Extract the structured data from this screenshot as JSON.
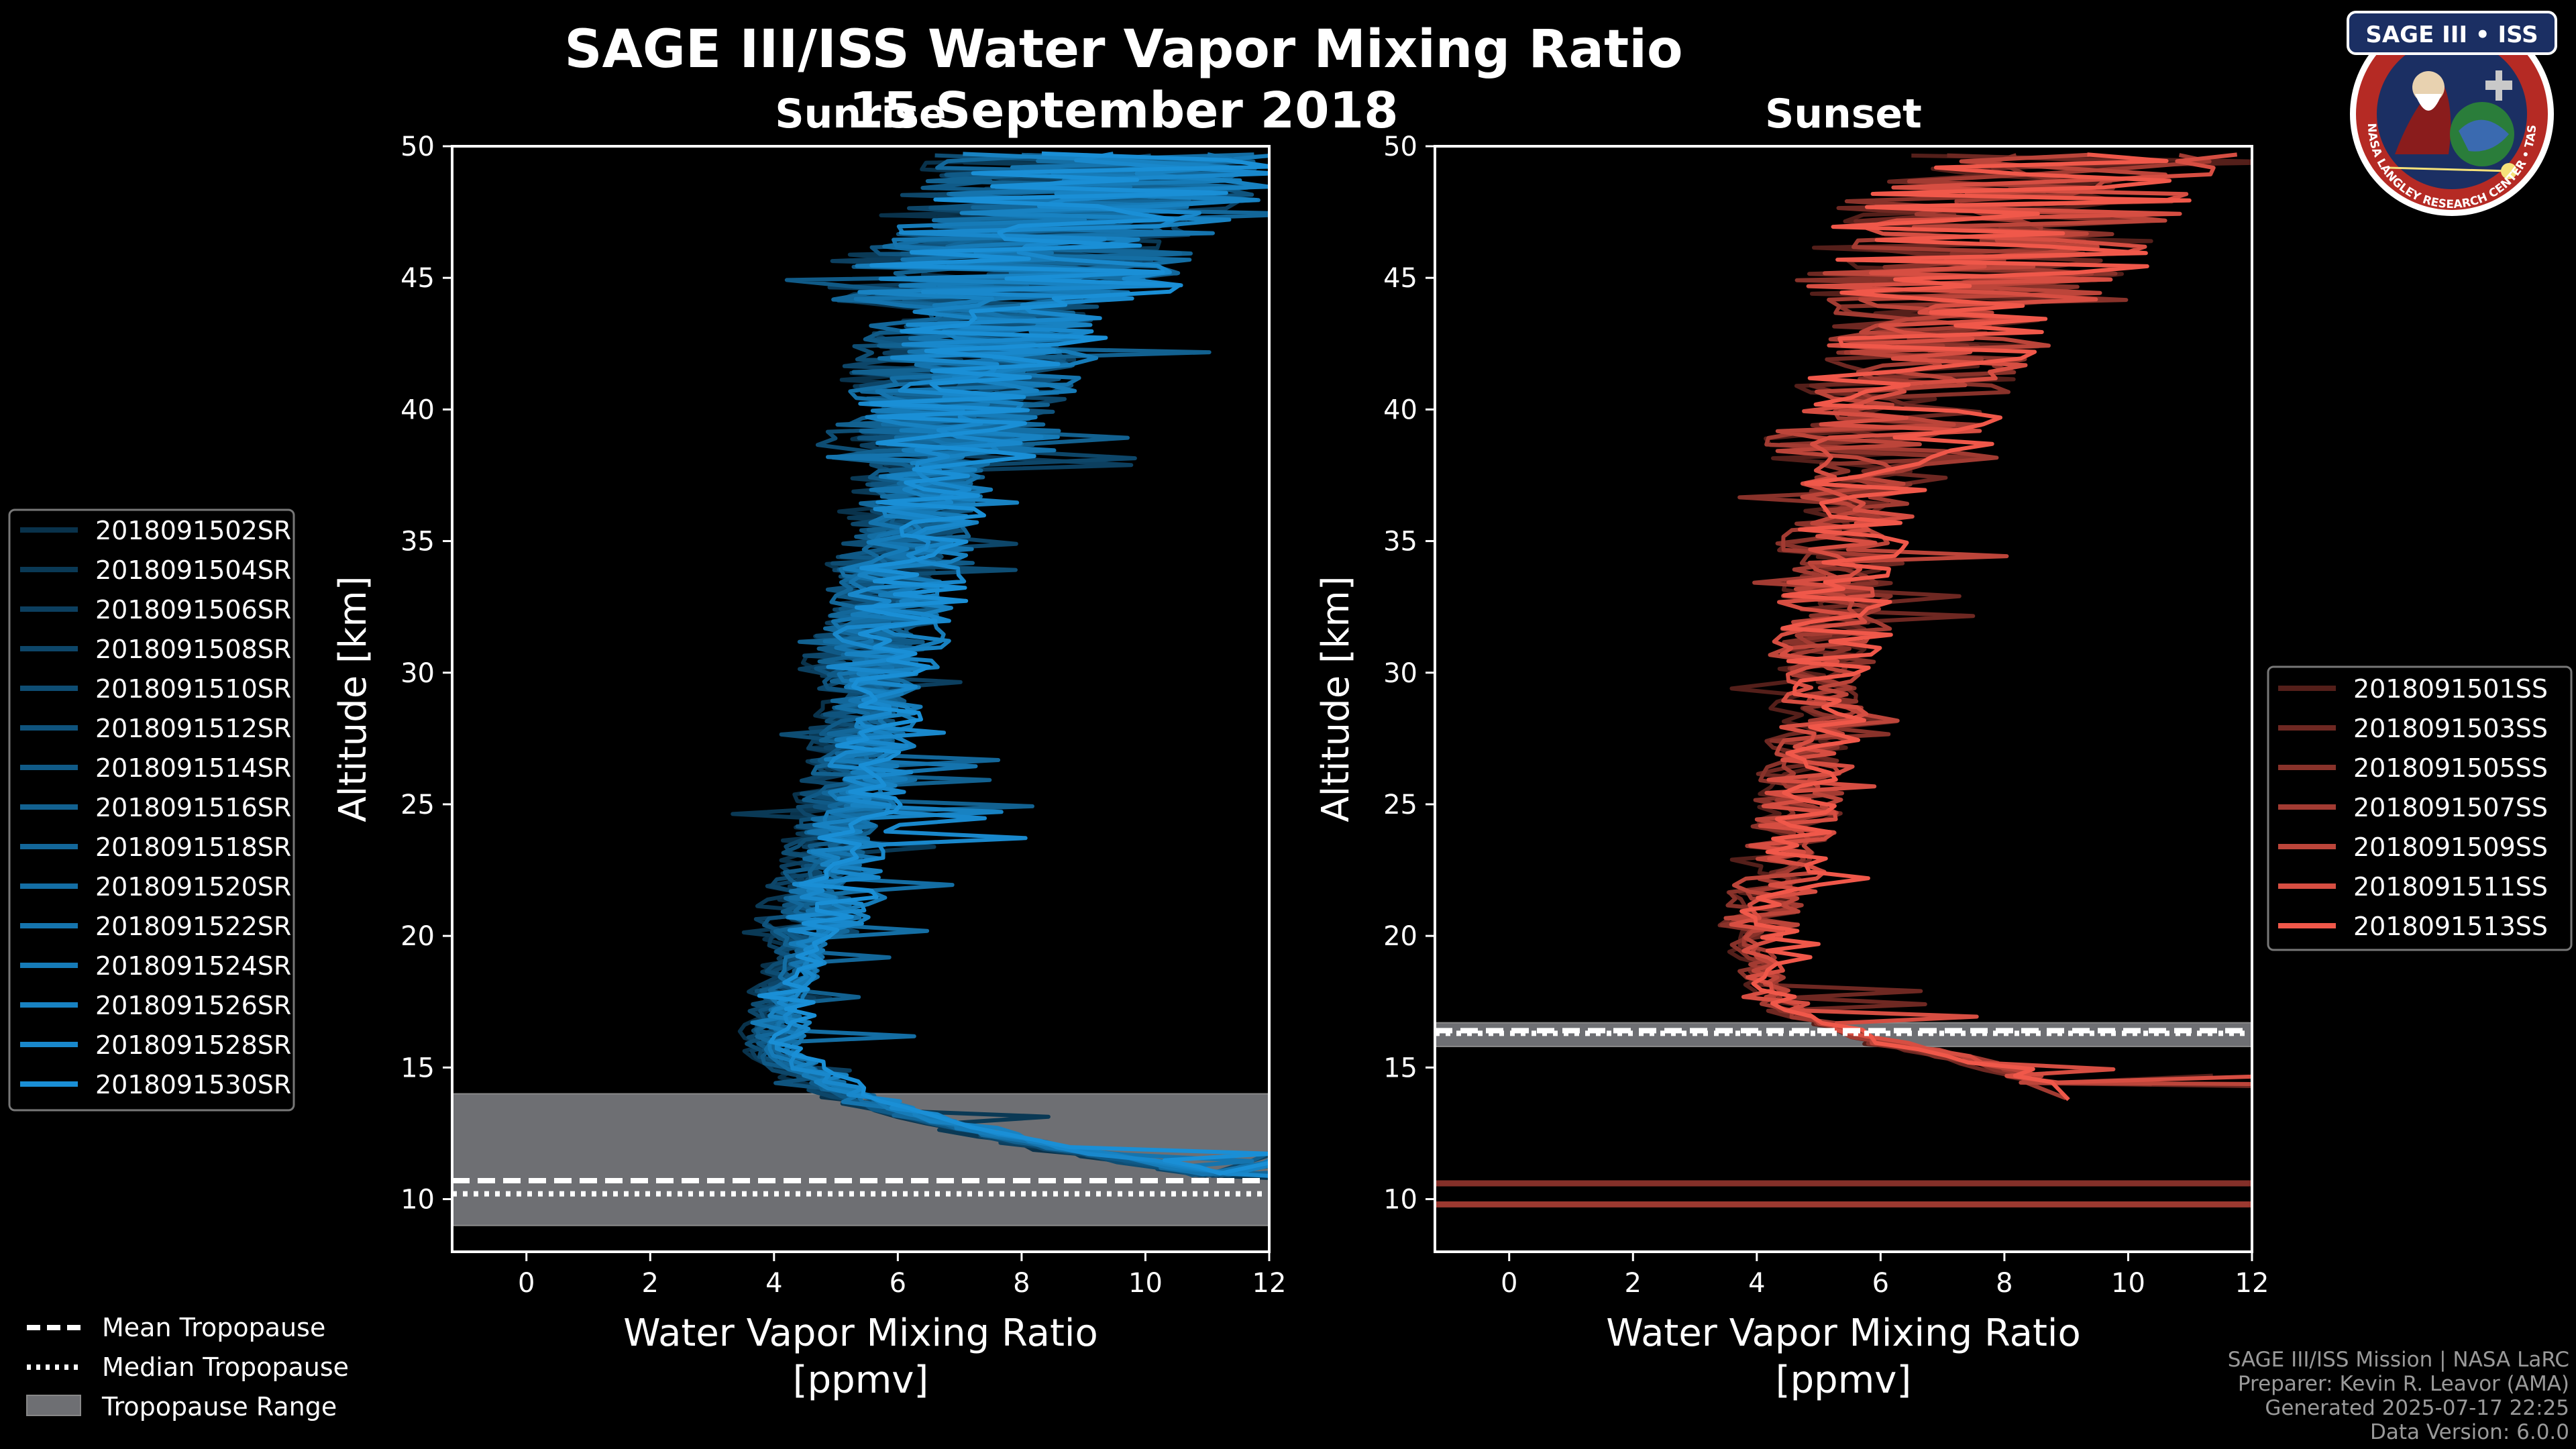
{
  "header": {
    "title": "SAGE III/ISS Water Vapor Mixing Ratio",
    "date": "15 September 2018",
    "left_label": "Sunrise",
    "right_label": "Sunset"
  },
  "logo": {
    "text_top": "SAGE III • ISS",
    "text_ring": "BALL • NASA LANGLEY RESEARCH CENTER • TAS-I • ESA"
  },
  "footer": {
    "line1": "SAGE III/ISS Mission | NASA LaRC",
    "line2": "Preparer: Kevin R. Leavor (AMA)",
    "line3": "Generated 2025-07-17 22:25",
    "line4": "Data Version: 6.0.0"
  },
  "tropopause_legend": {
    "mean": "Mean Tropopause",
    "median": "Median Tropopause",
    "range": "Tropopause Range"
  },
  "colors": {
    "sunrise": "#1a8fd6",
    "sunset": "#f0584a",
    "tropo_fill": "#6e6f73"
  },
  "chart_data": [
    {
      "type": "line",
      "panel": "Sunrise",
      "xlabel_line1": "Water Vapor Mixing Ratio",
      "xlabel_line2": "[ppmv]",
      "ylabel": "Altitude [km]",
      "xlim": [
        -1.2,
        12
      ],
      "ylim": [
        8,
        50
      ],
      "xticks": [
        0,
        2,
        4,
        6,
        8,
        10,
        12
      ],
      "yticks": [
        10,
        15,
        20,
        25,
        30,
        35,
        40,
        45,
        50
      ],
      "tropopause": {
        "mean": 10.7,
        "median": 10.2,
        "range": [
          9.0,
          14.0
        ]
      },
      "legend": [
        "2018091502SR",
        "2018091504SR",
        "2018091506SR",
        "2018091508SR",
        "2018091510SR",
        "2018091512SR",
        "2018091514SR",
        "2018091516SR",
        "2018091518SR",
        "2018091520SR",
        "2018091522SR",
        "2018091524SR",
        "2018091526SR",
        "2018091528SR",
        "2018091530SR"
      ],
      "altitude_km": [
        10.5,
        11,
        12,
        13,
        14,
        15,
        16,
        17,
        18,
        19,
        20,
        22,
        24,
        26,
        28,
        30,
        32,
        34,
        36,
        38,
        40,
        42,
        44,
        46,
        48,
        49.5
      ],
      "median_profile_ppmv": [
        12,
        11,
        8.5,
        6.5,
        5.2,
        4.3,
        4.0,
        4.1,
        4.2,
        4.4,
        4.5,
        4.8,
        5.1,
        5.3,
        5.5,
        5.6,
        5.8,
        6.0,
        6.3,
        6.6,
        7.0,
        7.2,
        7.5,
        8.0,
        9.0,
        9.5
      ]
    },
    {
      "type": "line",
      "panel": "Sunset",
      "xlabel_line1": "Water Vapor Mixing Ratio",
      "xlabel_line2": "[ppmv]",
      "ylabel": "Altitude [km]",
      "xlim": [
        -1.2,
        12
      ],
      "ylim": [
        8,
        50
      ],
      "xticks": [
        0,
        2,
        4,
        6,
        8,
        10,
        12
      ],
      "yticks": [
        10,
        15,
        20,
        25,
        30,
        35,
        40,
        45,
        50
      ],
      "tropopause": {
        "mean": 16.4,
        "median": 16.3,
        "range": [
          15.8,
          16.7
        ]
      },
      "legend": [
        "2018091501SS",
        "2018091503SS",
        "2018091505SS",
        "2018091507SS",
        "2018091509SS",
        "2018091511SS",
        "2018091513SS"
      ],
      "altitude_km": [
        14,
        15,
        16,
        17,
        18,
        19,
        20,
        22,
        24,
        26,
        28,
        30,
        32,
        34,
        36,
        38,
        40,
        42,
        44,
        46,
        48,
        49.5
      ],
      "median_profile_ppmv": [
        9.0,
        8.0,
        6.0,
        4.6,
        4.2,
        4.0,
        4.1,
        4.3,
        4.6,
        4.8,
        5.0,
        5.1,
        5.2,
        5.3,
        5.5,
        5.8,
        6.4,
        6.8,
        7.2,
        7.6,
        8.2,
        9.0
      ],
      "low_lines_km": [
        10.6,
        9.8
      ]
    }
  ]
}
